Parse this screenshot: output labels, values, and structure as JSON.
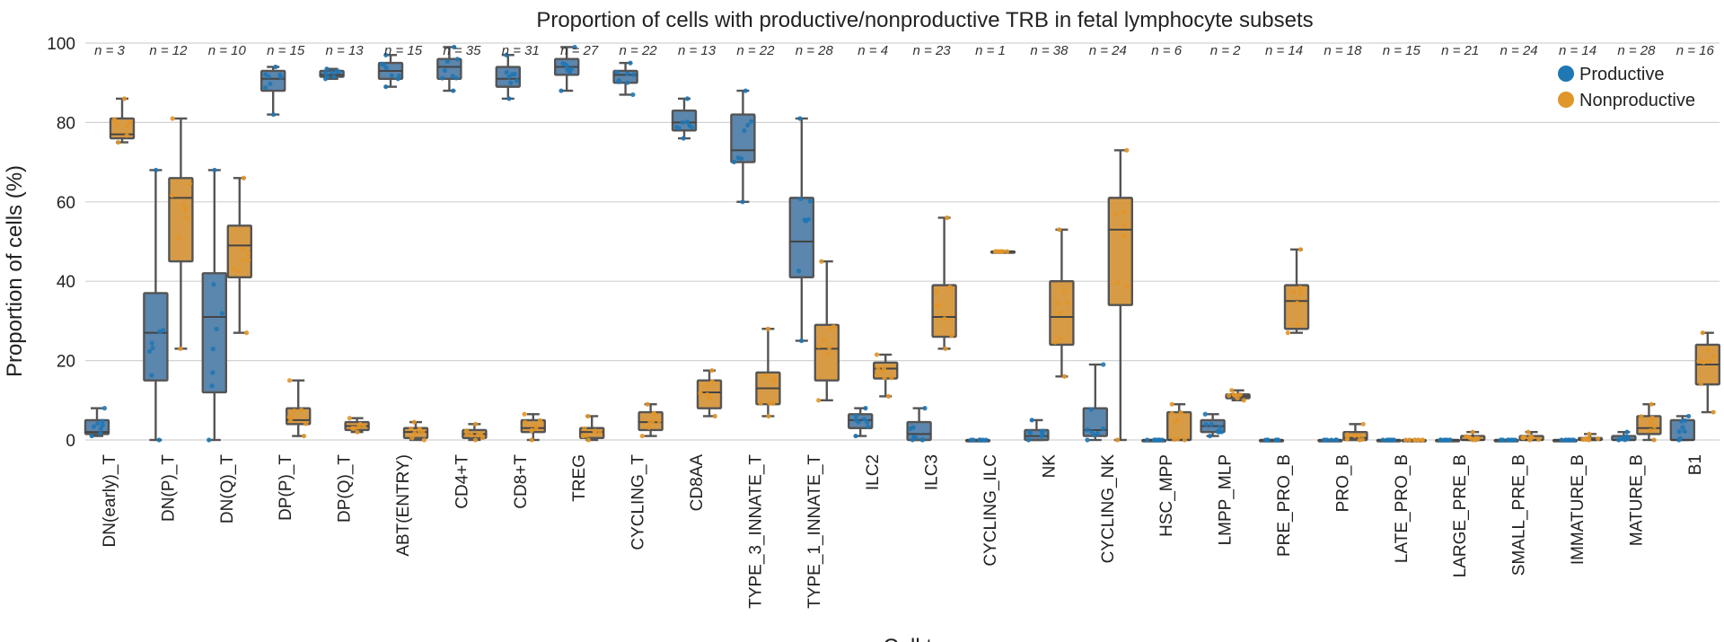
{
  "chart_data": {
    "type": "boxplot",
    "title": "Proportion of cells with productive/nonproductive TRB in fetal lymphocyte subsets",
    "xlabel": "Cell type",
    "ylabel": "Proportion of cells (%)",
    "ylim": [
      0,
      100
    ],
    "yticks": [
      0,
      20,
      40,
      60,
      80,
      100
    ],
    "grid": true,
    "legend_position": "top-right",
    "colors": {
      "Productive": "#1f77b4",
      "Nonproductive": "#e0962a",
      "box_fill_productive": "#5b86ad",
      "box_fill_nonproductive": "#d89b45",
      "box_line": "#555555"
    },
    "legend": [
      "Productive",
      "Nonproductive"
    ],
    "categories": [
      "DN(early)_T",
      "DN(P)_T",
      "DN(Q)_T",
      "DP(P)_T",
      "DP(Q)_T",
      "ABT(ENTRY)",
      "CD4+T",
      "CD8+T",
      "TREG",
      "CYCLING_T",
      "CD8AA",
      "TYPE_3_INNATE_T",
      "TYPE_1_INNATE_T",
      "ILC2",
      "ILC3",
      "CYCLING_ILC",
      "NK",
      "CYCLING_NK",
      "HSC_MPP",
      "LMPP_MLP",
      "PRE_PRO_B",
      "PRO_B",
      "LATE_PRO_B",
      "LARGE_PRE_B",
      "SMALL_PRE_B",
      "IMMATURE_B",
      "MATURE_B",
      "B1"
    ],
    "n_labels": [
      "n = 3",
      "n = 12",
      "n = 10",
      "n = 15",
      "n = 13",
      "n = 15",
      "n = 35",
      "n = 31",
      "n = 27",
      "n = 22",
      "n = 13",
      "n = 22",
      "n = 28",
      "n = 4",
      "n = 23",
      "n = 1",
      "n = 38",
      "n = 24",
      "n = 6",
      "n = 2",
      "n = 14",
      "n = 18",
      "n = 15",
      "n = 21",
      "n = 24",
      "n = 14",
      "n = 28",
      "n = 16"
    ],
    "series": [
      {
        "name": "Productive",
        "boxes": [
          {
            "min": 1,
            "q1": 1.5,
            "median": 2,
            "q3": 5,
            "max": 8
          },
          {
            "min": 0,
            "q1": 15,
            "median": 27,
            "q3": 37,
            "max": 68
          },
          {
            "min": 0,
            "q1": 12,
            "median": 31,
            "q3": 42,
            "max": 68
          },
          {
            "min": 82,
            "q1": 88,
            "median": 91,
            "q3": 93,
            "max": 94
          },
          {
            "min": 91,
            "q1": 91.5,
            "median": 92,
            "q3": 93,
            "max": 93.5
          },
          {
            "min": 89,
            "q1": 91,
            "median": 93,
            "q3": 95,
            "max": 97
          },
          {
            "min": 88,
            "q1": 91,
            "median": 94,
            "q3": 96,
            "max": 99
          },
          {
            "min": 86,
            "q1": 89,
            "median": 91,
            "q3": 94,
            "max": 97
          },
          {
            "min": 88,
            "q1": 92,
            "median": 94,
            "q3": 96,
            "max": 99
          },
          {
            "min": 87,
            "q1": 90,
            "median": 92,
            "q3": 93,
            "max": 95
          },
          {
            "min": 76,
            "q1": 78,
            "median": 80,
            "q3": 83,
            "max": 86
          },
          {
            "min": 60,
            "q1": 70,
            "median": 73,
            "q3": 82,
            "max": 88
          },
          {
            "min": 25,
            "q1": 41,
            "median": 50,
            "q3": 61,
            "max": 81
          },
          {
            "min": 1,
            "q1": 3,
            "median": 5,
            "q3": 6.5,
            "max": 8
          },
          {
            "min": 0,
            "q1": 0,
            "median": 1.5,
            "q3": 4.5,
            "max": 8
          },
          {
            "min": 0,
            "q1": 0,
            "median": 0,
            "q3": 0,
            "max": 0
          },
          {
            "min": 0,
            "q1": 0,
            "median": 1,
            "q3": 2.5,
            "max": 5
          },
          {
            "min": 0,
            "q1": 1,
            "median": 2.5,
            "q3": 8,
            "max": 19
          },
          {
            "min": 0,
            "q1": 0,
            "median": 0,
            "q3": 0,
            "max": 0
          },
          {
            "min": 1,
            "q1": 2,
            "median": 3.5,
            "q3": 5,
            "max": 6.5
          },
          {
            "min": 0,
            "q1": 0,
            "median": 0,
            "q3": 0,
            "max": 0
          },
          {
            "min": 0,
            "q1": 0,
            "median": 0,
            "q3": 0,
            "max": 0
          },
          {
            "min": 0,
            "q1": 0,
            "median": 0,
            "q3": 0,
            "max": 0
          },
          {
            "min": 0,
            "q1": 0,
            "median": 0,
            "q3": 0,
            "max": 0
          },
          {
            "min": 0,
            "q1": 0,
            "median": 0,
            "q3": 0,
            "max": 0
          },
          {
            "min": 0,
            "q1": 0,
            "median": 0,
            "q3": 0,
            "max": 0
          },
          {
            "min": 0,
            "q1": 0,
            "median": 0,
            "q3": 1,
            "max": 2
          },
          {
            "min": 0,
            "q1": 0,
            "median": 0,
            "q3": 5,
            "max": 6
          }
        ]
      },
      {
        "name": "Nonproductive",
        "boxes": [
          {
            "min": 75,
            "q1": 76,
            "median": 77,
            "q3": 81,
            "max": 86
          },
          {
            "min": 23,
            "q1": 45,
            "median": 61,
            "q3": 66,
            "max": 81
          },
          {
            "min": 27,
            "q1": 41,
            "median": 49,
            "q3": 54,
            "max": 66
          },
          {
            "min": 1,
            "q1": 4,
            "median": 5,
            "q3": 8,
            "max": 15
          },
          {
            "min": 2,
            "q1": 2.5,
            "median": 3.5,
            "q3": 4.5,
            "max": 5.5
          },
          {
            "min": 0,
            "q1": 0.5,
            "median": 2,
            "q3": 3,
            "max": 4.5
          },
          {
            "min": 0,
            "q1": 0.5,
            "median": 1.5,
            "q3": 2.5,
            "max": 4
          },
          {
            "min": 0,
            "q1": 2,
            "median": 3,
            "q3": 5,
            "max": 6.5
          },
          {
            "min": 0,
            "q1": 0.5,
            "median": 2,
            "q3": 3,
            "max": 6
          },
          {
            "min": 1,
            "q1": 2.5,
            "median": 4.5,
            "q3": 7,
            "max": 9
          },
          {
            "min": 6,
            "q1": 8,
            "median": 12,
            "q3": 15,
            "max": 17.5
          },
          {
            "min": 6,
            "q1": 9,
            "median": 13,
            "q3": 17,
            "max": 28
          },
          {
            "min": 10,
            "q1": 15,
            "median": 23,
            "q3": 29,
            "max": 45
          },
          {
            "min": 11,
            "q1": 15.5,
            "median": 18,
            "q3": 19.5,
            "max": 21.5
          },
          {
            "min": 23,
            "q1": 26,
            "median": 31,
            "q3": 39,
            "max": 56
          },
          {
            "min": 47.5,
            "q1": 47.5,
            "median": 47.5,
            "q3": 47.5,
            "max": 47.5
          },
          {
            "min": 16,
            "q1": 24,
            "median": 31,
            "q3": 40,
            "max": 53
          },
          {
            "min": 0,
            "q1": 34,
            "median": 53,
            "q3": 61,
            "max": 73
          },
          {
            "min": 0,
            "q1": 0,
            "median": 0,
            "q3": 7,
            "max": 9
          },
          {
            "min": 10,
            "q1": 10.5,
            "median": 11,
            "q3": 11.5,
            "max": 12.5
          },
          {
            "min": 27,
            "q1": 28,
            "median": 35,
            "q3": 39,
            "max": 48
          },
          {
            "min": 0,
            "q1": 0,
            "median": 0.5,
            "q3": 2,
            "max": 4
          },
          {
            "min": 0,
            "q1": 0,
            "median": 0,
            "q3": 0,
            "max": 0
          },
          {
            "min": 0,
            "q1": 0,
            "median": 0,
            "q3": 1,
            "max": 2
          },
          {
            "min": 0,
            "q1": 0,
            "median": 0,
            "q3": 1,
            "max": 2
          },
          {
            "min": 0,
            "q1": 0,
            "median": 0,
            "q3": 0.5,
            "max": 1.5
          },
          {
            "min": 0,
            "q1": 1.5,
            "median": 3,
            "q3": 6,
            "max": 9
          },
          {
            "min": 7,
            "q1": 14,
            "median": 19,
            "q3": 24,
            "max": 27
          }
        ]
      }
    ]
  }
}
